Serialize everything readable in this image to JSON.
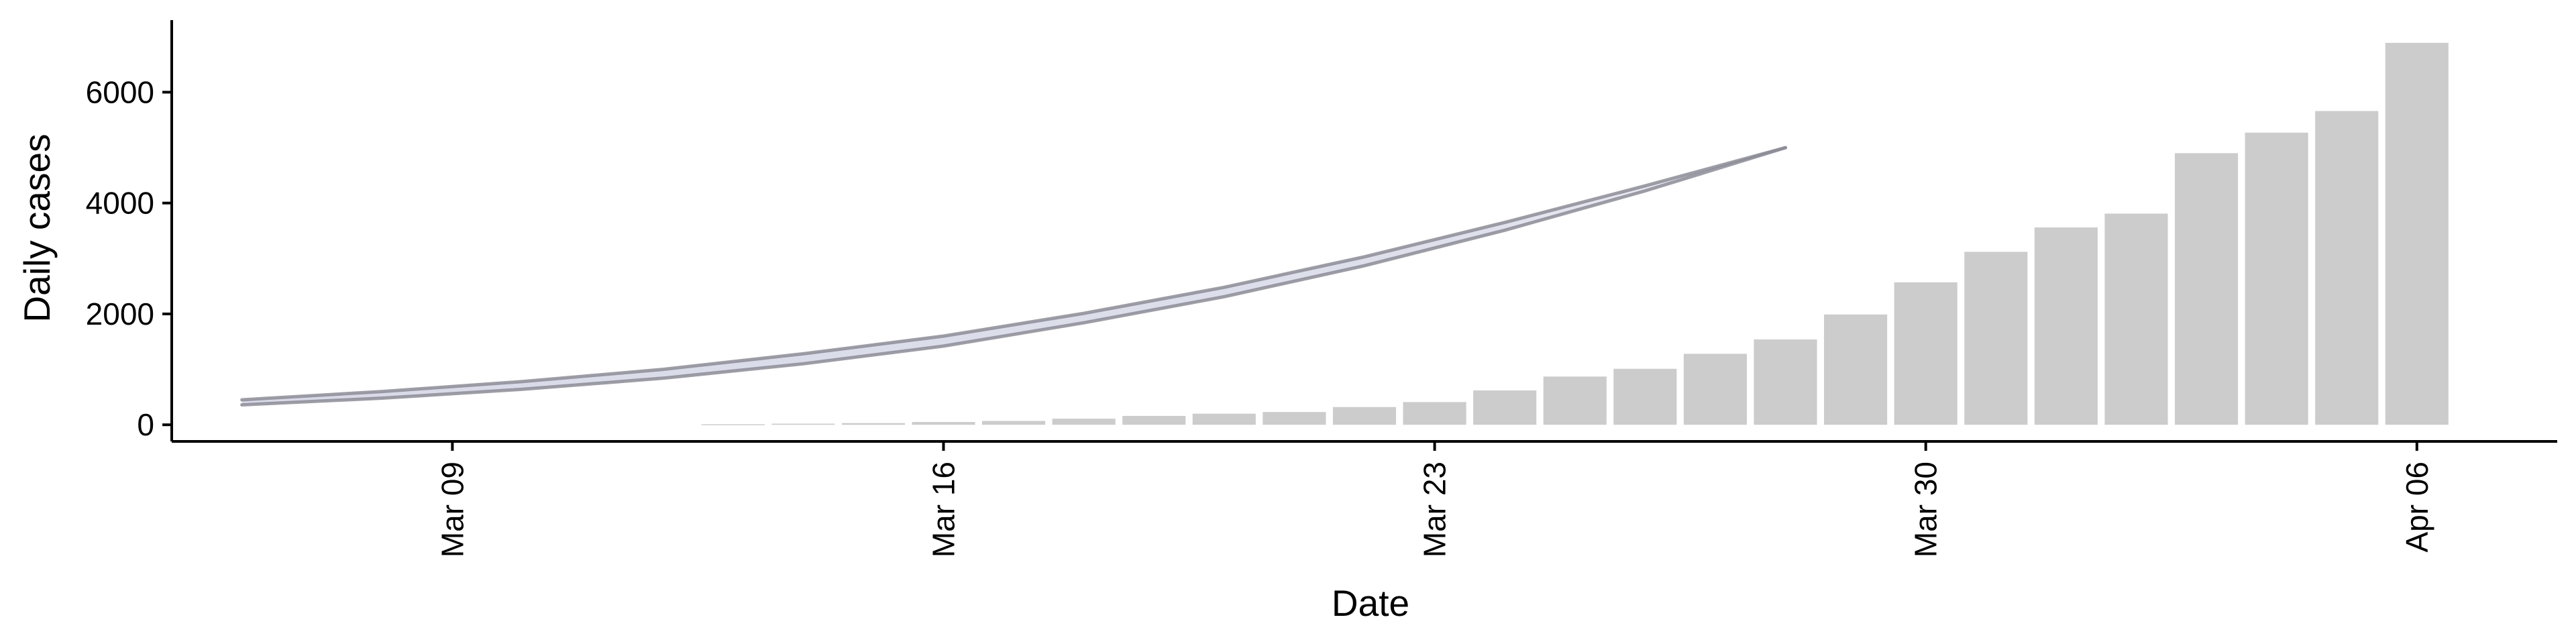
{
  "chart_data": {
    "type": "bar",
    "xlabel": "Date",
    "ylabel": "Daily cases",
    "x_range": [
      "2020-03-05",
      "2020-04-08"
    ],
    "ylim": [
      -300,
      7300
    ],
    "grid": false,
    "legend": "none",
    "x_ticks": [
      {
        "date": "2020-03-09",
        "label": "Mar 09"
      },
      {
        "date": "2020-03-16",
        "label": "Mar 16"
      },
      {
        "date": "2020-03-23",
        "label": "Mar 23"
      },
      {
        "date": "2020-03-30",
        "label": "Mar 30"
      },
      {
        "date": "2020-04-06",
        "label": "Apr 06"
      }
    ],
    "y_ticks": [
      0,
      2000,
      4000,
      6000
    ],
    "series": [
      {
        "type": "bar",
        "color": "#cccccc",
        "dates": [
          "2020-03-13",
          "2020-03-14",
          "2020-03-15",
          "2020-03-16",
          "2020-03-17",
          "2020-03-18",
          "2020-03-19",
          "2020-03-20",
          "2020-03-21",
          "2020-03-22",
          "2020-03-23",
          "2020-03-24",
          "2020-03-25",
          "2020-03-26",
          "2020-03-27",
          "2020-03-28",
          "2020-03-29",
          "2020-03-30",
          "2020-03-31",
          "2020-04-01",
          "2020-04-02",
          "2020-04-03",
          "2020-04-04",
          "2020-04-05",
          "2020-04-06"
        ],
        "values": [
          10,
          20,
          30,
          50,
          70,
          110,
          160,
          200,
          230,
          320,
          410,
          620,
          870,
          1010,
          1280,
          1540,
          1990,
          2570,
          3120,
          3560,
          3810,
          4900,
          5270,
          5660,
          6890
        ]
      },
      {
        "type": "ribbon",
        "color": "#8c8c96",
        "fill": "#d8dae8",
        "dates": [
          "2020-03-06",
          "2020-03-08",
          "2020-03-10",
          "2020-03-12",
          "2020-03-14",
          "2020-03-16",
          "2020-03-18",
          "2020-03-20",
          "2020-03-22",
          "2020-03-24",
          "2020-03-26",
          "2020-03-28"
        ],
        "lower": [
          360,
          480,
          640,
          840,
          1100,
          1420,
          1840,
          2310,
          2870,
          3510,
          4220,
          5000
        ],
        "upper": [
          450,
          600,
          780,
          1000,
          1280,
          1600,
          2010,
          2480,
          3030,
          3650,
          4310,
          5000
        ]
      }
    ]
  }
}
